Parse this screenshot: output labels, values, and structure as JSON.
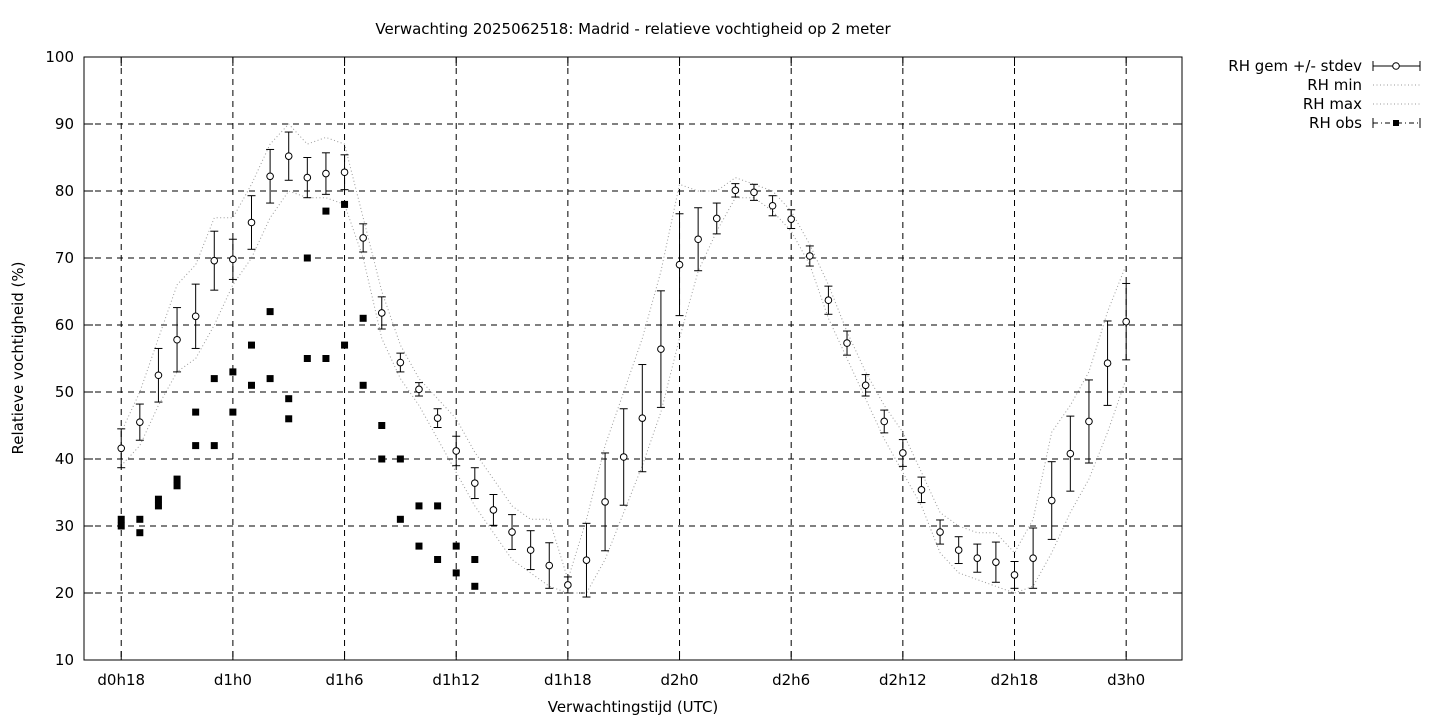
{
  "chart_data": {
    "type": "line",
    "title": "Verwachting 2025062518: Madrid - relatieve vochtigheid op 2 meter",
    "xlabel": "Verwachtingstijd (UTC)",
    "ylabel": "Relatieve vochtigheid (%)",
    "xlim": [
      16,
      75
    ],
    "ylim": [
      10,
      100
    ],
    "yticks": [
      10,
      20,
      30,
      40,
      50,
      60,
      70,
      80,
      90,
      100
    ],
    "xticks": [
      {
        "x": 18,
        "label": "d0h18"
      },
      {
        "x": 24,
        "label": "d1h0"
      },
      {
        "x": 30,
        "label": "d1h6"
      },
      {
        "x": 36,
        "label": "d1h12"
      },
      {
        "x": 42,
        "label": "d1h18"
      },
      {
        "x": 48,
        "label": "d2h0"
      },
      {
        "x": 54,
        "label": "d2h6"
      },
      {
        "x": 60,
        "label": "d2h12"
      },
      {
        "x": 66,
        "label": "d2h18"
      },
      {
        "x": 72,
        "label": "d3h0"
      }
    ],
    "grid": true,
    "legend_position": "outside-top-right",
    "legend": [
      "RH gem +/- stdev",
      "RH min",
      "RH max",
      "RH obs"
    ],
    "series": [
      {
        "name": "RH gem +/- stdev",
        "x": [
          18,
          19,
          20,
          21,
          22,
          23,
          24,
          25,
          26,
          27,
          28,
          29,
          30,
          31,
          32,
          33,
          34,
          35,
          36,
          37,
          38,
          39,
          40,
          41,
          42,
          43,
          44,
          45,
          46,
          47,
          48,
          49,
          50,
          51,
          52,
          53,
          54,
          55,
          56,
          57,
          58,
          59,
          60,
          61,
          62,
          63,
          64,
          65,
          66,
          67,
          68,
          69,
          70,
          71,
          72
        ],
        "mean": [
          41.6,
          45.5,
          52.5,
          57.8,
          61.3,
          69.6,
          69.8,
          75.3,
          82.2,
          85.2,
          82.0,
          82.6,
          82.8,
          73.0,
          61.8,
          54.4,
          50.4,
          46.1,
          41.2,
          36.4,
          32.4,
          29.1,
          26.4,
          24.1,
          21.2,
          24.9,
          33.6,
          40.3,
          46.1,
          56.4,
          69.0,
          72.8,
          75.9,
          80.1,
          79.8,
          77.8,
          75.8,
          70.3,
          63.7,
          57.3,
          51.0,
          45.6,
          40.9,
          35.4,
          29.1,
          26.4,
          25.2,
          24.6,
          22.7,
          25.2,
          33.8,
          40.8,
          45.6,
          54.3,
          60.5
        ],
        "stdev": [
          2.9,
          2.7,
          4.0,
          4.8,
          4.8,
          4.4,
          3.0,
          4.0,
          4.0,
          3.6,
          3.0,
          3.1,
          2.6,
          2.1,
          2.4,
          1.4,
          1.0,
          1.4,
          2.2,
          2.3,
          2.3,
          2.6,
          2.9,
          3.4,
          1.2,
          5.5,
          7.3,
          7.2,
          8.0,
          8.7,
          7.6,
          4.7,
          2.3,
          1.0,
          1.2,
          1.5,
          1.4,
          1.5,
          2.1,
          1.8,
          1.6,
          1.7,
          2.0,
          1.9,
          1.8,
          2.0,
          2.1,
          3.0,
          2.0,
          4.5,
          5.8,
          5.6,
          6.2,
          6.3,
          5.7
        ]
      },
      {
        "name": "RH min",
        "x": [
          18,
          19,
          20,
          21,
          22,
          23,
          24,
          25,
          26,
          27,
          28,
          29,
          30,
          31,
          32,
          33,
          34,
          35,
          36,
          37,
          38,
          39,
          40,
          41,
          42,
          43,
          44,
          45,
          46,
          47,
          48,
          49,
          50,
          51,
          52,
          53,
          54,
          55,
          56,
          57,
          58,
          59,
          60,
          61,
          62,
          63,
          64,
          65,
          66,
          67,
          68,
          69,
          70,
          71,
          72
        ],
        "values": [
          39,
          42,
          48,
          53,
          55,
          60,
          66,
          70,
          76,
          80,
          79,
          79,
          78,
          70,
          58,
          52,
          48,
          43,
          38,
          33,
          29,
          25,
          23,
          21,
          20,
          20,
          25,
          32,
          39,
          47,
          58,
          68,
          74,
          79,
          79,
          77,
          74,
          69,
          61,
          55,
          49,
          43,
          38,
          33,
          26,
          23,
          22,
          21,
          20,
          21,
          26,
          32,
          37,
          44,
          52
        ]
      },
      {
        "name": "RH max",
        "x": [
          18,
          19,
          20,
          21,
          22,
          23,
          24,
          25,
          26,
          27,
          28,
          29,
          30,
          31,
          32,
          33,
          34,
          35,
          36,
          37,
          38,
          39,
          40,
          41,
          42,
          43,
          44,
          45,
          46,
          47,
          48,
          49,
          50,
          51,
          52,
          53,
          54,
          55,
          56,
          57,
          58,
          59,
          60,
          61,
          62,
          63,
          64,
          65,
          66,
          67,
          68,
          69,
          70,
          71,
          72
        ],
        "values": [
          44,
          50,
          58,
          66,
          69,
          76,
          76,
          81,
          87,
          90,
          87,
          88,
          87,
          76,
          65,
          57,
          52,
          49,
          46,
          41,
          37,
          33,
          31,
          31,
          22,
          31,
          42,
          50,
          58,
          68,
          81,
          80,
          80,
          82,
          81,
          80,
          77,
          72,
          66,
          59,
          53,
          48,
          44,
          38,
          32,
          30,
          29,
          29,
          26,
          31,
          44,
          48,
          53,
          62,
          69
        ]
      },
      {
        "name": "RH obs",
        "x": [
          18,
          18,
          19,
          19,
          20,
          20,
          21,
          21,
          22,
          22,
          23,
          23,
          24,
          24,
          25,
          25,
          26,
          26,
          27,
          27,
          28,
          28,
          29,
          29,
          30,
          30,
          31,
          31,
          32,
          32,
          33,
          33,
          34,
          34,
          35,
          35,
          36,
          36,
          37,
          37
        ],
        "values": [
          30,
          31,
          29,
          31,
          33,
          34,
          36,
          37,
          42,
          47,
          42,
          52,
          47,
          53,
          51,
          57,
          52,
          62,
          46,
          49,
          55,
          70,
          55,
          77,
          57,
          78,
          51,
          61,
          40,
          45,
          31,
          40,
          27,
          33,
          25,
          33,
          23,
          27,
          21,
          25
        ]
      }
    ]
  }
}
